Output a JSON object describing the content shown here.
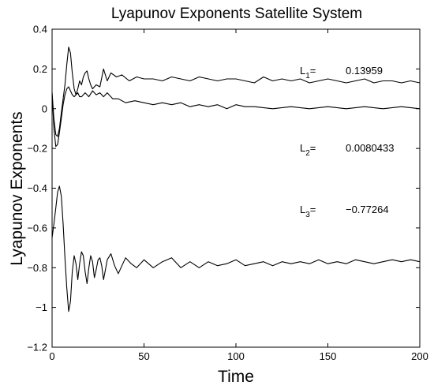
{
  "chart_data": {
    "type": "line",
    "title": "Lyapunov Exponents Satellite System",
    "xlabel": "Time",
    "ylabel": "Lyapunov Exponents",
    "xlim": [
      0,
      200
    ],
    "ylim": [
      -1.2,
      0.4
    ],
    "grid": false,
    "line_color": "#000000",
    "x_ticks": [
      0,
      50,
      100,
      150,
      200
    ],
    "y_ticks": [
      0.4,
      0.2,
      0,
      -0.2,
      -0.4,
      -0.6,
      -0.8,
      -1,
      -1.2
    ],
    "x_tick_labels": [
      "0",
      "50",
      "100",
      "150",
      "200"
    ],
    "y_tick_labels": [
      "0.4",
      "0.2",
      "0",
      "−0.2",
      "−0.4",
      "−0.6",
      "−0.8",
      "−1",
      "−1.2"
    ],
    "annotations": [
      {
        "base": "L",
        "sub": "1",
        "eq": "=",
        "value": "0.13959"
      },
      {
        "base": "L",
        "sub": "2",
        "eq": "=",
        "value": "0.0080433"
      },
      {
        "base": "L",
        "sub": "3",
        "eq": "=",
        "value": "−0.77264"
      }
    ],
    "series": [
      {
        "x": [
          0,
          1,
          2,
          3,
          4,
          5,
          6,
          7,
          8,
          9,
          10,
          11,
          12,
          13,
          14,
          15,
          16,
          17,
          18,
          19,
          20,
          21,
          22,
          24,
          26,
          28,
          30,
          32,
          35,
          38,
          42,
          46,
          50,
          55,
          60,
          65,
          70,
          75,
          80,
          85,
          90,
          95,
          100,
          105,
          110,
          115,
          120,
          125,
          130,
          135,
          140,
          145,
          150,
          155,
          160,
          165,
          170,
          175,
          180,
          185,
          190,
          195,
          200
        ],
        "y": [
          0.08,
          -0.05,
          -0.13,
          -0.14,
          -0.1,
          -0.02,
          0.05,
          0.12,
          0.22,
          0.31,
          0.28,
          0.18,
          0.1,
          0.07,
          0.1,
          0.14,
          0.12,
          0.16,
          0.18,
          0.19,
          0.15,
          0.12,
          0.1,
          0.12,
          0.11,
          0.2,
          0.14,
          0.18,
          0.16,
          0.17,
          0.14,
          0.16,
          0.15,
          0.15,
          0.14,
          0.16,
          0.15,
          0.14,
          0.16,
          0.15,
          0.14,
          0.15,
          0.15,
          0.14,
          0.13,
          0.16,
          0.14,
          0.15,
          0.14,
          0.15,
          0.13,
          0.14,
          0.15,
          0.14,
          0.13,
          0.14,
          0.15,
          0.13,
          0.14,
          0.14,
          0.13,
          0.14,
          0.13
        ]
      },
      {
        "x": [
          0,
          1,
          2,
          3,
          4,
          5,
          6,
          7,
          8,
          9,
          10,
          11,
          12,
          13,
          14,
          15,
          16,
          17,
          18,
          19,
          20,
          22,
          24,
          26,
          28,
          30,
          33,
          36,
          40,
          45,
          50,
          55,
          60,
          65,
          70,
          75,
          80,
          85,
          90,
          95,
          100,
          105,
          110,
          120,
          130,
          140,
          150,
          160,
          170,
          180,
          190,
          200
        ],
        "y": [
          0.08,
          -0.1,
          -0.19,
          -0.18,
          -0.12,
          -0.05,
          0.02,
          0.07,
          0.1,
          0.11,
          0.09,
          0.07,
          0.06,
          0.07,
          0.08,
          0.06,
          0.06,
          0.07,
          0.08,
          0.07,
          0.06,
          0.09,
          0.07,
          0.08,
          0.06,
          0.08,
          0.05,
          0.05,
          0.03,
          0.04,
          0.03,
          0.02,
          0.03,
          0.02,
          0.03,
          0.01,
          0.02,
          0.01,
          0.02,
          0.0,
          0.02,
          0.01,
          0.01,
          0.0,
          0.01,
          0.0,
          0.01,
          0.0,
          0.01,
          0.0,
          0.01,
          0.0
        ]
      },
      {
        "x": [
          0,
          1,
          2,
          3,
          4,
          5,
          6,
          7,
          8,
          9,
          10,
          11,
          12,
          13,
          14,
          15,
          16,
          17,
          18,
          19,
          20,
          21,
          22,
          23,
          24,
          25,
          26,
          27,
          28,
          29,
          30,
          32,
          34,
          36,
          38,
          40,
          43,
          46,
          50,
          55,
          60,
          65,
          70,
          75,
          80,
          85,
          90,
          95,
          100,
          105,
          110,
          115,
          120,
          125,
          130,
          135,
          140,
          145,
          150,
          155,
          160,
          165,
          170,
          175,
          180,
          185,
          190,
          195,
          200
        ],
        "y": [
          -0.65,
          -0.58,
          -0.5,
          -0.42,
          -0.39,
          -0.44,
          -0.58,
          -0.75,
          -0.9,
          -1.02,
          -0.97,
          -0.82,
          -0.74,
          -0.78,
          -0.86,
          -0.78,
          -0.72,
          -0.74,
          -0.82,
          -0.88,
          -0.8,
          -0.74,
          -0.77,
          -0.85,
          -0.81,
          -0.76,
          -0.75,
          -0.79,
          -0.86,
          -0.81,
          -0.76,
          -0.73,
          -0.79,
          -0.83,
          -0.79,
          -0.75,
          -0.78,
          -0.8,
          -0.76,
          -0.8,
          -0.77,
          -0.75,
          -0.8,
          -0.77,
          -0.8,
          -0.77,
          -0.79,
          -0.78,
          -0.76,
          -0.79,
          -0.78,
          -0.77,
          -0.79,
          -0.77,
          -0.78,
          -0.77,
          -0.78,
          -0.76,
          -0.78,
          -0.77,
          -0.78,
          -0.76,
          -0.77,
          -0.78,
          -0.77,
          -0.76,
          -0.77,
          -0.76,
          -0.77
        ]
      }
    ]
  }
}
